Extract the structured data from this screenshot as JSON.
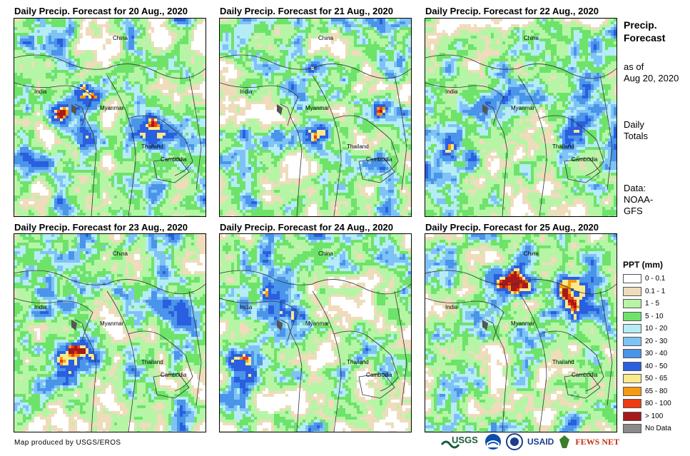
{
  "panels": [
    {
      "title": "Daily Precip. Forecast for 20 Aug., 2020",
      "labels": [
        "China",
        "India",
        "Myanmar",
        "Thailand",
        "Cambodia"
      ]
    },
    {
      "title": "Daily Precip. Forecast for 21 Aug., 2020",
      "labels": [
        "China",
        "India",
        "Myanmar",
        "Thailand",
        "Cambodia"
      ]
    },
    {
      "title": "Daily Precip. Forecast for 22 Aug., 2020",
      "labels": [
        "China",
        "India",
        "Myanmar",
        "Thailand",
        "Cambodia"
      ]
    },
    {
      "title": "Daily Precip. Forecast for 23 Aug., 2020",
      "labels": [
        "China",
        "India",
        "Myanmar",
        "Thailand",
        "Cambodia"
      ]
    },
    {
      "title": "Daily Precip. Forecast for 24 Aug., 2020",
      "labels": [
        "China",
        "India",
        "Myanmar",
        "Thailand",
        "Cambodia"
      ]
    },
    {
      "title": "Daily Precip. Forecast for 25 Aug., 2020",
      "labels": [
        "China",
        "India",
        "Myanmar",
        "Thailand",
        "Cambodia"
      ]
    }
  ],
  "sidebar": {
    "title_line1": "Precip.",
    "title_line2": "Forecast",
    "asof_line1": "as of",
    "asof_line2": "Aug 20, 2020",
    "totals_line1": "Daily",
    "totals_line2": "Totals",
    "data_line1": "Data:",
    "data_line2": "NOAA-",
    "data_line3": "GFS"
  },
  "legend": {
    "title": "PPT (mm)",
    "items": [
      {
        "label": "0 - 0.1",
        "color": "#ffffff"
      },
      {
        "label": "0.1 - 1",
        "color": "#eedcbb"
      },
      {
        "label": "1 - 5",
        "color": "#b6f5a6"
      },
      {
        "label": "5 - 10",
        "color": "#6ee36a"
      },
      {
        "label": "10 - 20",
        "color": "#b5ecf6"
      },
      {
        "label": "20 - 30",
        "color": "#7ec3f5"
      },
      {
        "label": "30 - 40",
        "color": "#4a94ea"
      },
      {
        "label": "40 - 50",
        "color": "#2a5fe0"
      },
      {
        "label": "50 - 65",
        "color": "#fde98a"
      },
      {
        "label": "65 - 80",
        "color": "#f59a10"
      },
      {
        "label": "80 - 100",
        "color": "#f03a10"
      },
      {
        "label": "> 100",
        "color": "#a51a1a"
      },
      {
        "label": "No Data",
        "color": "#8a8a8a"
      }
    ]
  },
  "credit": "Map produced by USGS/EROS",
  "logos": [
    "USGS",
    "USAID",
    "FEWS NET"
  ]
}
